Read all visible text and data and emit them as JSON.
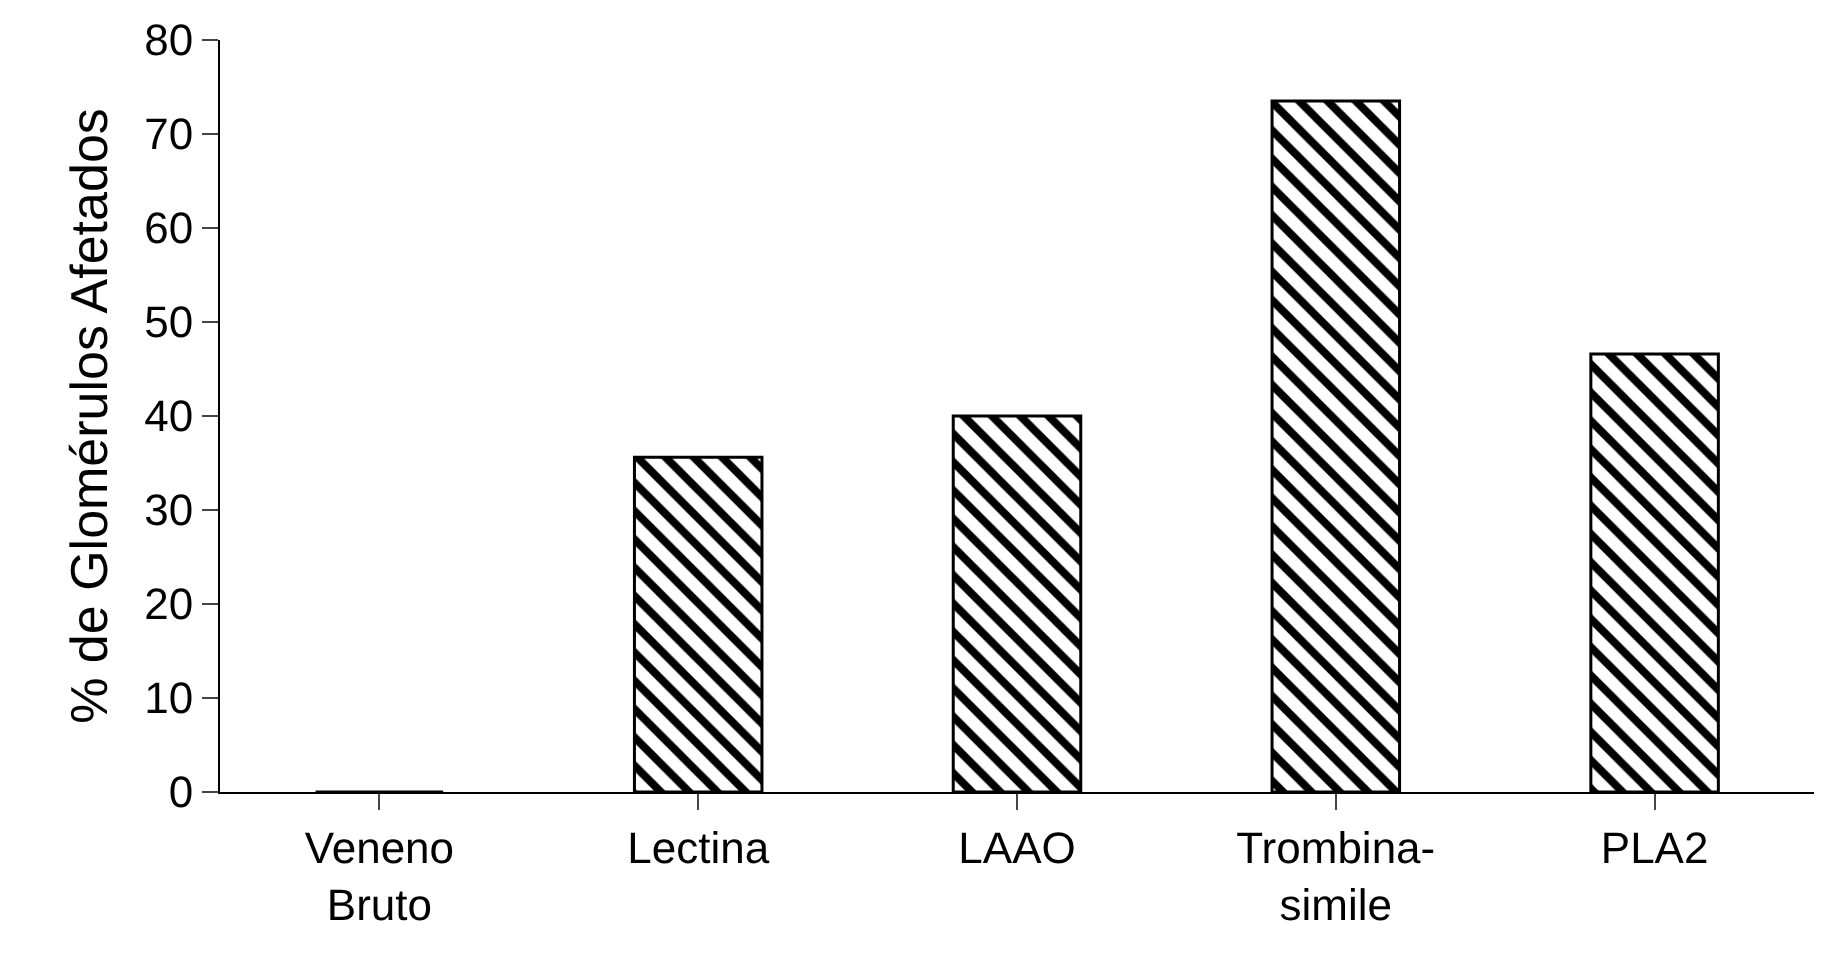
{
  "chart_data": {
    "type": "bar",
    "ylabel": "% de Glomérulos Afetados",
    "categories": [
      "Veneno\nBruto",
      "Lectina",
      "LAAO",
      "Trombina-\nsimile",
      "PLA2"
    ],
    "values": [
      0,
      35.6,
      40,
      73.5,
      46.6
    ],
    "color": "#000000",
    "ylim": [
      0,
      80
    ],
    "yticks": [
      0,
      10,
      20,
      30,
      40,
      50,
      60,
      70,
      80
    ]
  }
}
